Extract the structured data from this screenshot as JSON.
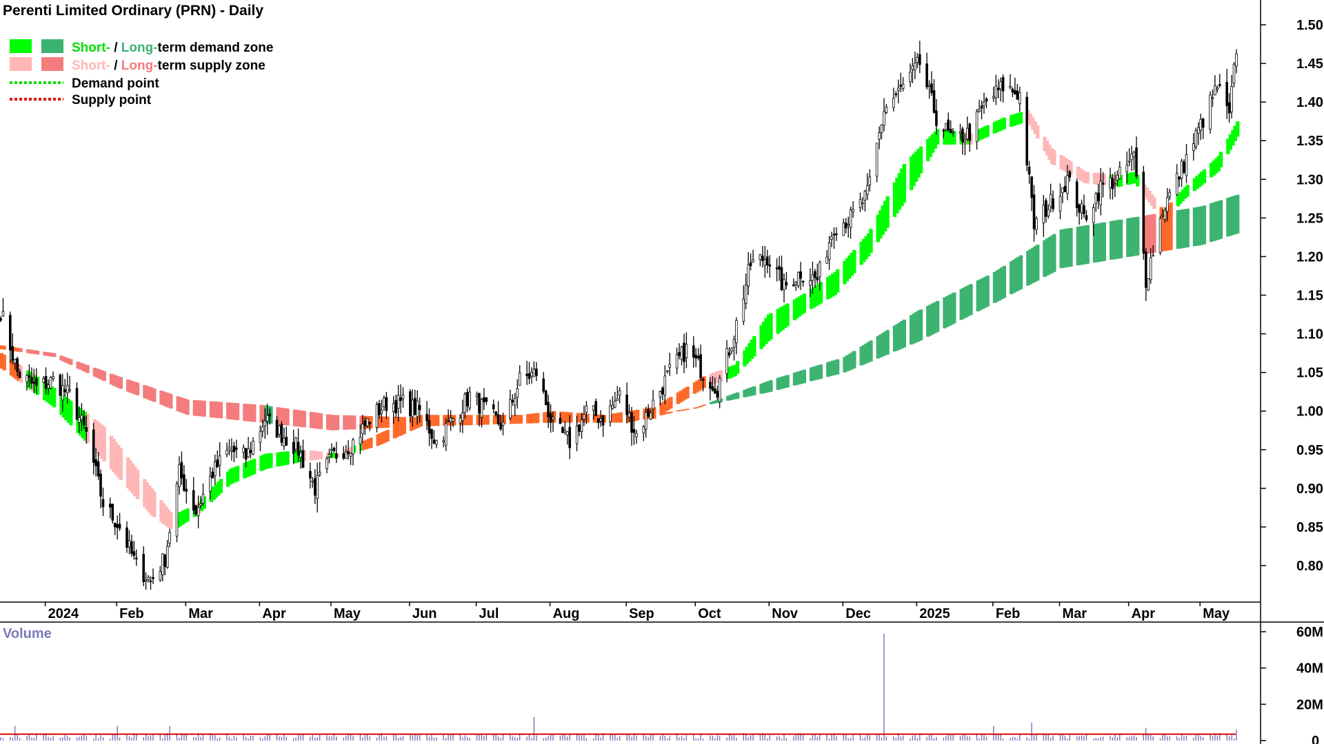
{
  "title": "Perenti Limited Ordinary (PRN) - Daily",
  "legend": {
    "demand_zone": {
      "short": "Short-",
      "sep": " / ",
      "long": "Long-",
      "rest": "term demand zone"
    },
    "supply_zone": {
      "short": "Short-",
      "sep": " / ",
      "long": "Long-",
      "rest": "term supply zone"
    },
    "demand_point": "Demand point",
    "supply_point": "Supply point"
  },
  "colors": {
    "short_demand": "#00ff00",
    "long_demand": "#3cb371",
    "short_supply": "#ffb6b6",
    "long_supply": "#f47c7c",
    "overlap": "#ff6a2b",
    "demand_text_short": "#00e000",
    "demand_text_long": "#3cb371",
    "supply_text_short": "#ffb6b6",
    "supply_text_long": "#f47c7c",
    "volume_bar": "#6a6ab0",
    "volume_ma": "#dd0000"
  },
  "volume_label": "Volume",
  "chart_data": {
    "type": "candlestick",
    "title": "Perenti Limited Ordinary (PRN) - Daily",
    "price_axis": {
      "ylim": [
        0.75,
        1.51
      ],
      "ticks": [
        "0.80",
        "0.85",
        "0.90",
        "0.95",
        "1.00",
        "1.05",
        "1.10",
        "1.15",
        "1.20",
        "1.25",
        "1.30",
        "1.35",
        "1.40",
        "1.45",
        "1.50"
      ]
    },
    "x_axis": {
      "range": [
        "2023-12-14",
        "2025-05-16"
      ],
      "labels": [
        {
          "label": "2024",
          "date": "2024-01-02"
        },
        {
          "label": "Feb",
          "date": "2024-02-01"
        },
        {
          "label": "Mar",
          "date": "2024-03-01"
        },
        {
          "label": "Apr",
          "date": "2024-04-01"
        },
        {
          "label": "May",
          "date": "2024-05-01"
        },
        {
          "label": "Jun",
          "date": "2024-06-03"
        },
        {
          "label": "Jul",
          "date": "2024-07-01"
        },
        {
          "label": "Aug",
          "date": "2024-08-01"
        },
        {
          "label": "Sep",
          "date": "2024-09-02"
        },
        {
          "label": "Oct",
          "date": "2024-10-01"
        },
        {
          "label": "Nov",
          "date": "2024-11-01"
        },
        {
          "label": "Dec",
          "date": "2024-12-02"
        },
        {
          "label": "2025",
          "date": "2025-01-02"
        },
        {
          "label": "Feb",
          "date": "2025-02-03"
        },
        {
          "label": "Mar",
          "date": "2025-03-03"
        },
        {
          "label": "Apr",
          "date": "2025-04-01"
        },
        {
          "label": "May",
          "date": "2025-05-01"
        }
      ]
    },
    "close_path": [
      [
        "2023-12-14",
        1.13
      ],
      [
        "2023-12-21",
        1.05
      ],
      [
        "2023-12-29",
        1.03
      ],
      [
        "2024-01-05",
        1.04
      ],
      [
        "2024-01-12",
        1.02
      ],
      [
        "2024-01-19",
        0.97
      ],
      [
        "2024-01-26",
        0.88
      ],
      [
        "2024-02-02",
        0.85
      ],
      [
        "2024-02-09",
        0.8
      ],
      [
        "2024-02-15",
        0.78
      ],
      [
        "2024-02-21",
        0.81
      ],
      [
        "2024-02-27",
        0.92
      ],
      [
        "2024-03-05",
        0.87
      ],
      [
        "2024-03-12",
        0.92
      ],
      [
        "2024-03-19",
        0.95
      ],
      [
        "2024-03-26",
        0.94
      ],
      [
        "2024-04-03",
        0.99
      ],
      [
        "2024-04-10",
        0.97
      ],
      [
        "2024-04-17",
        0.95
      ],
      [
        "2024-04-24",
        0.9
      ],
      [
        "2024-05-01",
        0.94
      ],
      [
        "2024-05-10",
        0.96
      ],
      [
        "2024-05-17",
        0.99
      ],
      [
        "2024-05-24",
        1.01
      ],
      [
        "2024-05-31",
        1.01
      ],
      [
        "2024-06-07",
        1.0
      ],
      [
        "2024-06-14",
        0.96
      ],
      [
        "2024-06-21",
        0.99
      ],
      [
        "2024-06-28",
        1.02
      ],
      [
        "2024-07-05",
        1.0
      ],
      [
        "2024-07-12",
        0.98
      ],
      [
        "2024-07-19",
        1.04
      ],
      [
        "2024-07-26",
        1.05
      ],
      [
        "2024-08-02",
        0.98
      ],
      [
        "2024-08-09",
        0.96
      ],
      [
        "2024-08-16",
        1.0
      ],
      [
        "2024-08-23",
        0.99
      ],
      [
        "2024-08-30",
        1.02
      ],
      [
        "2024-09-06",
        0.97
      ],
      [
        "2024-09-13",
        1.01
      ],
      [
        "2024-09-20",
        1.05
      ],
      [
        "2024-09-27",
        1.08
      ],
      [
        "2024-10-04",
        1.05
      ],
      [
        "2024-10-10",
        1.03
      ],
      [
        "2024-10-17",
        1.1
      ],
      [
        "2024-10-24",
        1.19
      ],
      [
        "2024-10-31",
        1.2
      ],
      [
        "2024-11-07",
        1.16
      ],
      [
        "2024-11-14",
        1.18
      ],
      [
        "2024-11-21",
        1.17
      ],
      [
        "2024-11-28",
        1.24
      ],
      [
        "2024-12-05",
        1.25
      ],
      [
        "2024-12-12",
        1.28
      ],
      [
        "2024-12-19",
        1.39
      ],
      [
        "2024-12-27",
        1.42
      ],
      [
        "2025-01-03",
        1.45
      ],
      [
        "2025-01-10",
        1.38
      ],
      [
        "2025-01-17",
        1.35
      ],
      [
        "2025-01-24",
        1.36
      ],
      [
        "2025-01-31",
        1.4
      ],
      [
        "2025-02-07",
        1.42
      ],
      [
        "2025-02-14",
        1.41
      ],
      [
        "2025-02-20",
        1.24
      ],
      [
        "2025-02-27",
        1.27
      ],
      [
        "2025-03-06",
        1.3
      ],
      [
        "2025-03-13",
        1.25
      ],
      [
        "2025-03-20",
        1.29
      ],
      [
        "2025-03-27",
        1.3
      ],
      [
        "2025-04-03",
        1.33
      ],
      [
        "2025-04-08",
        1.17
      ],
      [
        "2025-04-15",
        1.26
      ],
      [
        "2025-04-24",
        1.32
      ],
      [
        "2025-05-01",
        1.37
      ],
      [
        "2025-05-08",
        1.42
      ],
      [
        "2025-05-13",
        1.38
      ],
      [
        "2025-05-16",
        1.47
      ]
    ],
    "series": [
      {
        "name": "Short-term zone",
        "top": [
          [
            "2023-12-14",
            1.075
          ],
          [
            "2024-01-05",
            1.03
          ],
          [
            "2024-01-26",
            0.98
          ],
          [
            "2024-02-15",
            0.9
          ],
          [
            "2024-02-24",
            0.865
          ],
          [
            "2024-03-05",
            0.88
          ],
          [
            "2024-03-19",
            0.925
          ],
          [
            "2024-04-03",
            0.945
          ],
          [
            "2024-04-19",
            0.95
          ],
          [
            "2024-05-03",
            0.945
          ],
          [
            "2024-05-20",
            0.97
          ],
          [
            "2024-06-07",
            0.995
          ],
          [
            "2024-06-28",
            0.995
          ],
          [
            "2024-07-19",
            0.995
          ],
          [
            "2024-08-02",
            1.0
          ],
          [
            "2024-08-23",
            0.995
          ],
          [
            "2024-09-13",
            1.005
          ],
          [
            "2024-10-04",
            1.045
          ],
          [
            "2024-10-17",
            1.06
          ],
          [
            "2024-10-31",
            1.125
          ],
          [
            "2024-11-14",
            1.15
          ],
          [
            "2024-11-28",
            1.18
          ],
          [
            "2024-12-12",
            1.23
          ],
          [
            "2024-12-27",
            1.32
          ],
          [
            "2025-01-10",
            1.365
          ],
          [
            "2025-01-24",
            1.36
          ],
          [
            "2025-02-07",
            1.38
          ],
          [
            "2025-02-17",
            1.39
          ],
          [
            "2025-02-27",
            1.34
          ],
          [
            "2025-03-13",
            1.31
          ],
          [
            "2025-03-27",
            1.305
          ],
          [
            "2025-04-03",
            1.31
          ],
          [
            "2025-04-15",
            1.26
          ],
          [
            "2025-04-24",
            1.29
          ],
          [
            "2025-05-08",
            1.33
          ],
          [
            "2025-05-16",
            1.375
          ]
        ],
        "bottom": [
          [
            "2023-12-14",
            1.055
          ],
          [
            "2024-01-05",
            1.005
          ],
          [
            "2024-01-26",
            0.935
          ],
          [
            "2024-02-15",
            0.865
          ],
          [
            "2024-02-24",
            0.845
          ],
          [
            "2024-03-05",
            0.865
          ],
          [
            "2024-03-19",
            0.905
          ],
          [
            "2024-04-03",
            0.925
          ],
          [
            "2024-04-19",
            0.935
          ],
          [
            "2024-05-03",
            0.94
          ],
          [
            "2024-05-20",
            0.955
          ],
          [
            "2024-06-07",
            0.98
          ],
          [
            "2024-06-28",
            0.985
          ],
          [
            "2024-07-19",
            0.985
          ],
          [
            "2024-08-02",
            0.99
          ],
          [
            "2024-08-23",
            0.985
          ],
          [
            "2024-09-13",
            0.99
          ],
          [
            "2024-10-04",
            1.03
          ],
          [
            "2024-10-17",
            1.045
          ],
          [
            "2024-10-31",
            1.09
          ],
          [
            "2024-11-14",
            1.125
          ],
          [
            "2024-11-28",
            1.15
          ],
          [
            "2024-12-12",
            1.2
          ],
          [
            "2024-12-27",
            1.27
          ],
          [
            "2025-01-10",
            1.345
          ],
          [
            "2025-01-24",
            1.345
          ],
          [
            "2025-02-07",
            1.365
          ],
          [
            "2025-02-17",
            1.375
          ],
          [
            "2025-02-27",
            1.32
          ],
          [
            "2025-03-13",
            1.295
          ],
          [
            "2025-03-27",
            1.29
          ],
          [
            "2025-04-03",
            1.295
          ],
          [
            "2025-04-15",
            1.245
          ],
          [
            "2025-04-24",
            1.275
          ],
          [
            "2025-05-08",
            1.31
          ],
          [
            "2025-05-16",
            1.355
          ]
        ]
      },
      {
        "name": "Long-term zone",
        "top": [
          [
            "2023-12-14",
            1.085
          ],
          [
            "2024-01-05",
            1.075
          ],
          [
            "2024-02-01",
            1.045
          ],
          [
            "2024-03-01",
            1.015
          ],
          [
            "2024-04-01",
            1.008
          ],
          [
            "2024-05-01",
            0.995
          ],
          [
            "2024-06-03",
            0.992
          ],
          [
            "2024-07-01",
            0.99
          ],
          [
            "2024-08-01",
            0.99
          ],
          [
            "2024-09-02",
            0.99
          ],
          [
            "2024-10-01",
            1.005
          ],
          [
            "2024-11-01",
            1.04
          ],
          [
            "2024-12-02",
            1.07
          ],
          [
            "2025-01-02",
            1.13
          ],
          [
            "2025-02-03",
            1.18
          ],
          [
            "2025-03-03",
            1.235
          ],
          [
            "2025-04-01",
            1.25
          ],
          [
            "2025-05-01",
            1.265
          ],
          [
            "2025-05-16",
            1.28
          ]
        ],
        "bottom": [
          [
            "2023-12-14",
            1.08
          ],
          [
            "2024-01-05",
            1.07
          ],
          [
            "2024-02-01",
            1.03
          ],
          [
            "2024-03-01",
            0.995
          ],
          [
            "2024-04-01",
            0.985
          ],
          [
            "2024-05-01",
            0.975
          ],
          [
            "2024-06-03",
            0.98
          ],
          [
            "2024-07-01",
            0.982
          ],
          [
            "2024-08-01",
            0.985
          ],
          [
            "2024-09-02",
            0.985
          ],
          [
            "2024-10-01",
            1.005
          ],
          [
            "2024-11-01",
            1.025
          ],
          [
            "2024-12-02",
            1.05
          ],
          [
            "2025-01-02",
            1.09
          ],
          [
            "2025-02-03",
            1.14
          ],
          [
            "2025-03-03",
            1.185
          ],
          [
            "2025-04-01",
            1.2
          ],
          [
            "2025-05-01",
            1.215
          ],
          [
            "2025-05-16",
            1.23
          ]
        ]
      }
    ],
    "volume": {
      "label": "Volume",
      "ylim": [
        0,
        62000000
      ],
      "ticks": [
        "0",
        "20M",
        "40M",
        "60M"
      ],
      "tick_values": [
        0,
        20000000,
        40000000,
        60000000
      ],
      "typical": 2000000,
      "spikes": [
        [
          "2023-12-20",
          8000000
        ],
        [
          "2024-02-01",
          8000000
        ],
        [
          "2024-02-23",
          8000000
        ],
        [
          "2024-07-25",
          13000000
        ],
        [
          "2024-12-19",
          59000000
        ],
        [
          "2025-02-03",
          8000000
        ],
        [
          "2025-02-19",
          10000000
        ],
        [
          "2025-04-08",
          7000000
        ],
        [
          "2025-05-16",
          6000000
        ]
      ],
      "ma": 3500000
    }
  }
}
